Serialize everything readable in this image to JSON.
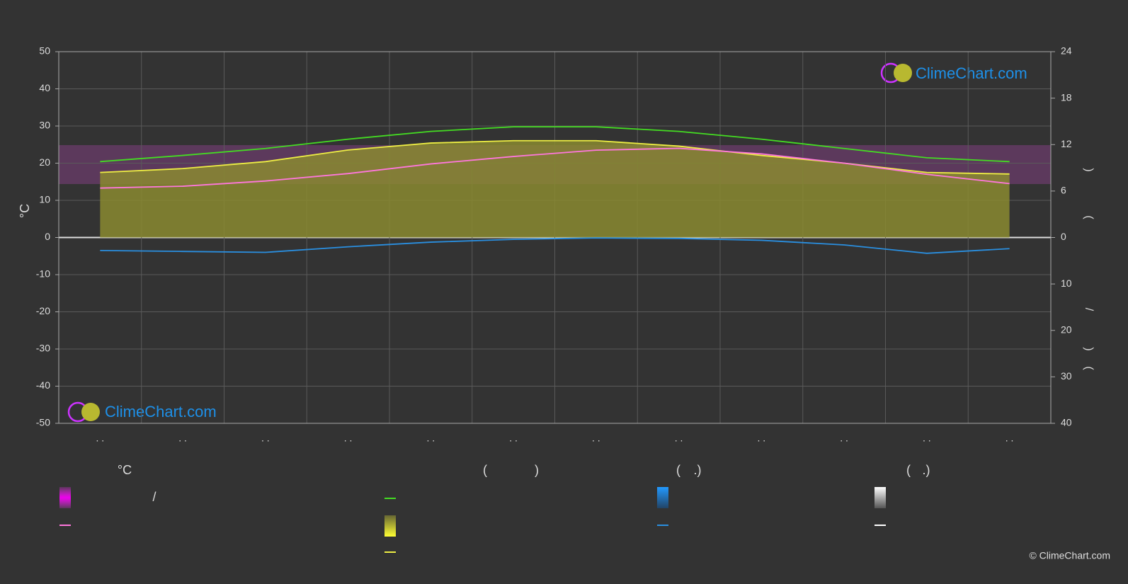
{
  "chart_data": {
    "type": "line",
    "y_label": "°C",
    "categories": [
      ". .",
      ". .",
      ". .",
      ". .",
      ". .",
      ". .",
      ". .",
      ". .",
      ". .",
      ". .",
      ". .",
      ". ."
    ],
    "ylim": [
      -50,
      50
    ],
    "yticks": [
      50,
      40,
      30,
      20,
      10,
      0,
      -10,
      -20,
      -30,
      -40,
      -50
    ],
    "y2lim": [
      -24,
      24
    ],
    "y2ticks": [
      0,
      6,
      12,
      18,
      24
    ],
    "y3lim": [
      40,
      -40
    ],
    "y3ticks": [
      10,
      20,
      30,
      40
    ],
    "grid": true,
    "series": [
      {
        "color": "#44dd22",
        "axis": "y2",
        "values": [
          9.8,
          10.6,
          11.5,
          12.7,
          13.7,
          14.3,
          14.3,
          13.7,
          12.7,
          11.5,
          10.3,
          9.8
        ]
      },
      {
        "color": "#eeee44",
        "axis": "y2",
        "fill": true,
        "values": [
          8.4,
          8.9,
          9.8,
          11.3,
          12.2,
          12.5,
          12.5,
          11.8,
          10.6,
          9.6,
          8.4,
          8.2
        ]
      },
      {
        "color": "#ff77dd",
        "axis": "y",
        "values": [
          13.3,
          13.8,
          15.2,
          17.2,
          19.8,
          21.8,
          23.5,
          24,
          22.5,
          20,
          17,
          14.5
        ]
      },
      {
        "color": "#2a8fe0",
        "axis": "y3",
        "values": [
          2.8,
          3,
          3.2,
          2,
          1,
          0.4,
          0.1,
          0.2,
          0.6,
          1.6,
          3.4,
          2.4
        ]
      }
    ],
    "legend_texts": [
      "°C",
      "/",
      "(",
      ")",
      "(",
      ".)",
      "(",
      ".)"
    ],
    "y2_label_texts": [
      ")",
      "(",
      "/",
      ")",
      "("
    ],
    "watermarks": [
      "ClimeChart.com",
      "ClimeChart.com"
    ],
    "copyright": "© ClimeChart.com"
  }
}
